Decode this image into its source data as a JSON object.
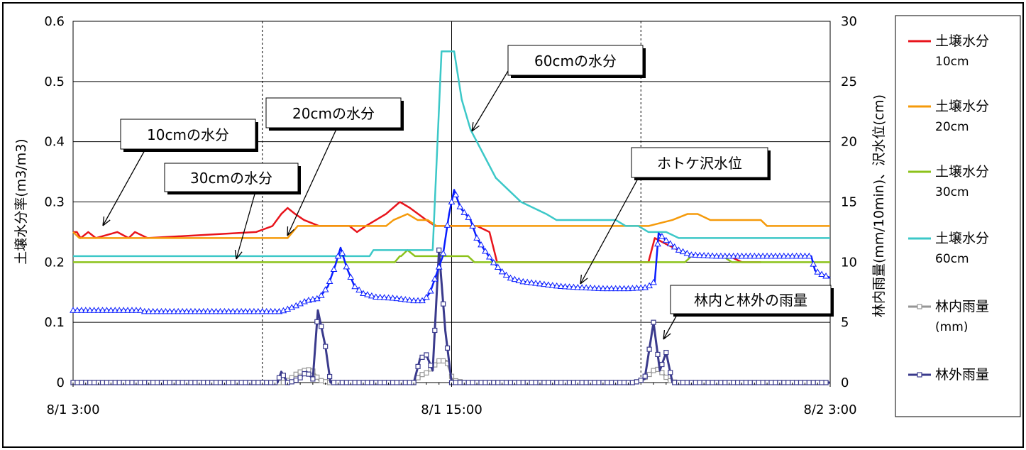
{
  "chart_data": {
    "type": "line",
    "x_labels": [
      "8/1 3:00",
      "8/1 15:00",
      "8/2 3:00"
    ],
    "y_left": {
      "label": "土壌水分率(m3/m3)",
      "ticks": [
        "0",
        "0.1",
        "0.2",
        "0.3",
        "0.4",
        "0.5",
        "0.6"
      ],
      "range": [
        0,
        0.6
      ]
    },
    "y_right": {
      "label": "林内雨量(mm/10min)、沢水位(cm)",
      "ticks": [
        "0",
        "5",
        "10",
        "15",
        "20",
        "25",
        "30"
      ],
      "range": [
        0,
        30
      ]
    },
    "grid": true,
    "legend_position": "right",
    "series": [
      {
        "name": "土壌水分",
        "sub": "10cm",
        "color": "#e8141c",
        "axis": "left",
        "marker": "none",
        "points": [
          [
            0,
            0.25
          ],
          [
            0.3,
            0.25
          ],
          [
            0.6,
            0.24
          ],
          [
            1.2,
            0.25
          ],
          [
            1.8,
            0.24
          ],
          [
            3.5,
            0.25
          ],
          [
            4.4,
            0.24
          ],
          [
            4.9,
            0.25
          ],
          [
            5.9,
            0.24
          ],
          [
            14.5,
            0.25
          ],
          [
            15.8,
            0.26
          ],
          [
            16.5,
            0.28
          ],
          [
            17.0,
            0.29
          ],
          [
            17.6,
            0.28
          ],
          [
            18.3,
            0.27
          ],
          [
            19.5,
            0.26
          ],
          [
            21.9,
            0.26
          ],
          [
            22.5,
            0.25
          ],
          [
            23.2,
            0.26
          ],
          [
            24.8,
            0.28
          ],
          [
            25.9,
            0.3
          ],
          [
            26.7,
            0.29
          ],
          [
            28.0,
            0.27
          ],
          [
            28.7,
            0.26
          ],
          [
            32.0,
            0.26
          ],
          [
            33.0,
            0.25
          ],
          [
            33.6,
            0.2
          ],
          [
            40.0,
            0.2
          ],
          [
            45.6,
            0.2
          ],
          [
            46.1,
            0.24
          ],
          [
            47.0,
            0.23
          ],
          [
            48.0,
            0.22
          ],
          [
            49.0,
            0.21
          ],
          [
            52.0,
            0.21
          ],
          [
            53.0,
            0.2
          ],
          [
            54.5,
            0.2
          ]
        ]
      },
      {
        "name": "土壌水分",
        "sub": "20cm",
        "color": "#f59a0a",
        "axis": "left",
        "marker": "none",
        "points": [
          [
            0,
            0.25
          ],
          [
            0.5,
            0.24
          ],
          [
            17.0,
            0.24
          ],
          [
            17.8,
            0.26
          ],
          [
            24.8,
            0.26
          ],
          [
            25.4,
            0.27
          ],
          [
            26.5,
            0.28
          ],
          [
            27.3,
            0.27
          ],
          [
            28.1,
            0.27
          ],
          [
            28.8,
            0.26
          ],
          [
            45.6,
            0.26
          ],
          [
            47.5,
            0.27
          ],
          [
            48.7,
            0.28
          ],
          [
            49.5,
            0.28
          ],
          [
            50.5,
            0.27
          ],
          [
            54.5,
            0.27
          ],
          [
            55.0,
            0.26
          ],
          [
            60,
            0.26
          ]
        ]
      },
      {
        "name": "土壌水分",
        "sub": "30cm",
        "color": "#8cc21a",
        "axis": "left",
        "marker": "none",
        "points": [
          [
            0,
            0.2
          ],
          [
            25.5,
            0.2
          ],
          [
            25.9,
            0.21
          ],
          [
            26.0,
            0.21
          ],
          [
            26.5,
            0.22
          ],
          [
            27.1,
            0.21
          ],
          [
            31.3,
            0.21
          ],
          [
            31.8,
            0.2
          ],
          [
            48.5,
            0.2
          ],
          [
            49.0,
            0.21
          ],
          [
            51.5,
            0.21
          ],
          [
            52.2,
            0.2
          ],
          [
            60,
            0.2
          ]
        ]
      },
      {
        "name": "土壌水分",
        "sub": "60cm",
        "color": "#3cc8c8",
        "axis": "left",
        "marker": "none",
        "points": [
          [
            0,
            0.21
          ],
          [
            22.8,
            0.21
          ],
          [
            23.5,
            0.21
          ],
          [
            23.8,
            0.22
          ],
          [
            28.5,
            0.22
          ],
          [
            29.2,
            0.55
          ],
          [
            30.2,
            0.55
          ],
          [
            30.8,
            0.47
          ],
          [
            31.5,
            0.42
          ],
          [
            32.5,
            0.38
          ],
          [
            33.5,
            0.34
          ],
          [
            34.5,
            0.32
          ],
          [
            35.5,
            0.3
          ],
          [
            36.5,
            0.29
          ],
          [
            37.5,
            0.28
          ],
          [
            38.3,
            0.27
          ],
          [
            43.0,
            0.27
          ],
          [
            43.8,
            0.26
          ],
          [
            44.8,
            0.26
          ],
          [
            45.6,
            0.25
          ],
          [
            47.0,
            0.25
          ],
          [
            48.0,
            0.24
          ],
          [
            60,
            0.24
          ]
        ]
      },
      {
        "name": "林内雨量",
        "sub": "(mm)",
        "color": "#969696",
        "axis": "right",
        "marker": "square",
        "points": [
          [
            0,
            0
          ],
          [
            16.7,
            0
          ],
          [
            17.2,
            0.3
          ],
          [
            17.8,
            0.8
          ],
          [
            18.3,
            1.0
          ],
          [
            18.9,
            1.1
          ],
          [
            19.5,
            0.2
          ],
          [
            20.3,
            0
          ],
          [
            27.0,
            0
          ],
          [
            27.5,
            0.6
          ],
          [
            28.0,
            0.8
          ],
          [
            28.5,
            1.3
          ],
          [
            29.0,
            1.8
          ],
          [
            29.6,
            1.8
          ],
          [
            30.1,
            0.2
          ],
          [
            31.0,
            0
          ],
          [
            44.5,
            0
          ],
          [
            45.0,
            0.2
          ],
          [
            45.7,
            0.7
          ],
          [
            46.2,
            1.2
          ],
          [
            46.7,
            0.8
          ],
          [
            47.2,
            0.2
          ],
          [
            47.8,
            0
          ],
          [
            60,
            0
          ]
        ]
      },
      {
        "name": "林外雨量",
        "sub": "",
        "color": "#3a3a8c",
        "axis": "right",
        "marker": "square",
        "points": [
          [
            0,
            0
          ],
          [
            16.2,
            0
          ],
          [
            16.5,
            0.9
          ],
          [
            17.0,
            0
          ],
          [
            17.5,
            0.1
          ],
          [
            18.0,
            0.4
          ],
          [
            18.5,
            0.9
          ],
          [
            19.0,
            0.3
          ],
          [
            19.4,
            6.0
          ],
          [
            20.0,
            3.0
          ],
          [
            20.4,
            0
          ],
          [
            27.0,
            0
          ],
          [
            27.5,
            2.0
          ],
          [
            28.0,
            2.3
          ],
          [
            28.5,
            1.0
          ],
          [
            29.0,
            11.0
          ],
          [
            29.5,
            4.3
          ],
          [
            30.0,
            0
          ],
          [
            44.5,
            0
          ],
          [
            45.3,
            0.3
          ],
          [
            46.0,
            5.0
          ],
          [
            46.5,
            1.0
          ],
          [
            47.0,
            2.5
          ],
          [
            47.5,
            0
          ],
          [
            60,
            0
          ]
        ]
      },
      {
        "name": "ホトケ沢水位",
        "sub": "",
        "color": "#0a1eff",
        "axis": "right",
        "marker": "triangle",
        "points": [
          [
            0,
            6.0
          ],
          [
            5.4,
            6.0
          ],
          [
            5.5,
            5.9
          ],
          [
            16.5,
            5.9
          ],
          [
            17.5,
            6.3
          ],
          [
            18.5,
            6.8
          ],
          [
            19.5,
            7.0
          ],
          [
            20.2,
            8.0
          ],
          [
            20.8,
            9.8
          ],
          [
            21.2,
            11.2
          ],
          [
            21.7,
            9.5
          ],
          [
            22.3,
            8.0
          ],
          [
            23.0,
            7.4
          ],
          [
            24.0,
            7.1
          ],
          [
            25.5,
            7.0
          ],
          [
            27.0,
            6.8
          ],
          [
            27.8,
            6.8
          ],
          [
            28.3,
            7.5
          ],
          [
            28.8,
            9.0
          ],
          [
            29.3,
            10.5
          ],
          [
            29.8,
            14.0
          ],
          [
            30.2,
            16.0
          ],
          [
            30.7,
            14.5
          ],
          [
            31.5,
            13.5
          ],
          [
            32.0,
            12.0
          ],
          [
            32.6,
            11.0
          ],
          [
            33.3,
            10.0
          ],
          [
            34.0,
            9.2
          ],
          [
            34.6,
            8.7
          ],
          [
            35.5,
            8.4
          ],
          [
            37.0,
            8.2
          ],
          [
            38.5,
            8.0
          ],
          [
            40.0,
            7.9
          ],
          [
            42.0,
            7.8
          ],
          [
            44.0,
            7.8
          ],
          [
            45.5,
            7.9
          ],
          [
            46.1,
            8.4
          ],
          [
            46.4,
            12.4
          ],
          [
            47.0,
            11.8
          ],
          [
            48.0,
            11.0
          ],
          [
            49.0,
            10.6
          ],
          [
            51.0,
            10.5
          ],
          [
            53.0,
            10.5
          ],
          [
            55.0,
            10.5
          ],
          [
            57.0,
            10.5
          ],
          [
            58.5,
            10.5
          ],
          [
            58.8,
            9.3
          ],
          [
            59.3,
            9.0
          ],
          [
            60,
            8.7
          ]
        ]
      }
    ],
    "annotations": [
      {
        "text": "10cmの水分"
      },
      {
        "text": "20cmの水分"
      },
      {
        "text": "30cmの水分"
      },
      {
        "text": "60cmの水分"
      },
      {
        "text": "ホトケ沢水位"
      },
      {
        "text": "林内と林外の雨量"
      }
    ]
  }
}
